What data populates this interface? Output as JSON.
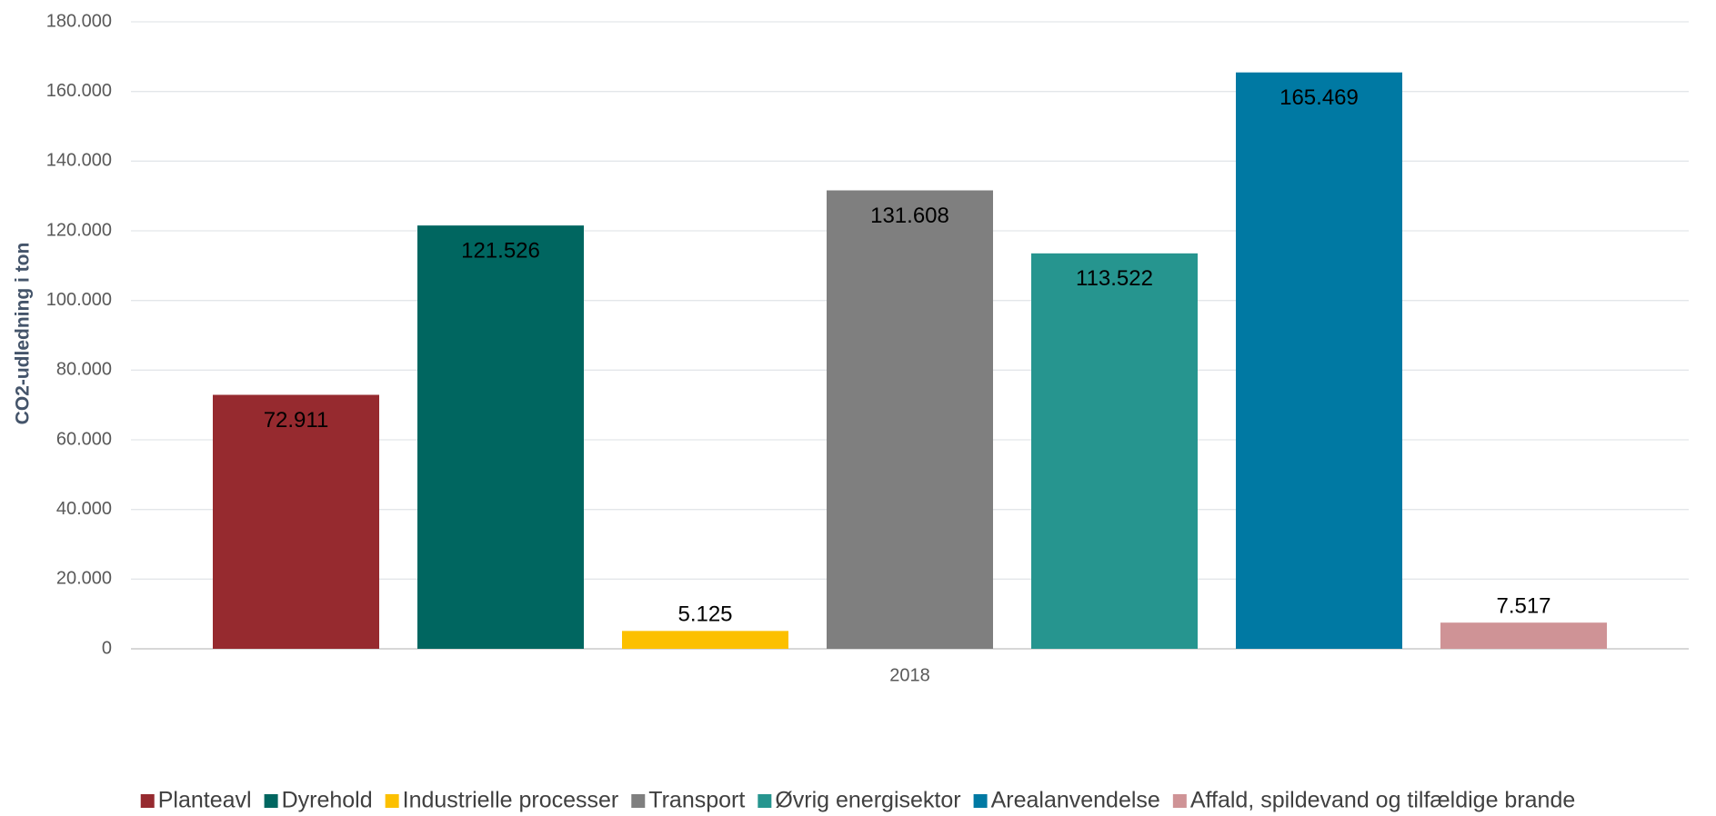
{
  "chart_data": {
    "type": "bar",
    "y_label": "CO2-udledning i ton",
    "categories": [
      "2018"
    ],
    "series": [
      {
        "name": "Planteavl",
        "color": "#962a2f",
        "values": [
          72911
        ],
        "value_labels": [
          "72.911"
        ]
      },
      {
        "name": "Dyrehold",
        "color": "#006660",
        "values": [
          121526
        ],
        "value_labels": [
          "121.526"
        ]
      },
      {
        "name": "Industrielle processer",
        "color": "#fcc000",
        "values": [
          5125
        ],
        "value_labels": [
          "5.125"
        ]
      },
      {
        "name": "Transport",
        "color": "#7f7f7f",
        "values": [
          131608
        ],
        "value_labels": [
          "131.608"
        ]
      },
      {
        "name": "Øvrig energisektor",
        "color": "#26958f",
        "values": [
          113522
        ],
        "value_labels": [
          "113.522"
        ]
      },
      {
        "name": "Arealanvendelse",
        "color": "#0079a3",
        "values": [
          165469
        ],
        "value_labels": [
          "165.469"
        ]
      },
      {
        "name": "Affald, spildevand og tilfældige brande",
        "color": "#cf9396",
        "values": [
          7517
        ],
        "value_labels": [
          "7.517"
        ]
      }
    ],
    "ylim": [
      0,
      180000
    ],
    "yticks": [
      0,
      {
        "value": 20000,
        "label": "20.000"
      },
      {
        "value": 40000,
        "label": "40.000"
      },
      {
        "value": 60000,
        "label": "60.000"
      },
      {
        "value": 80000,
        "label": "80.000"
      },
      {
        "value": 100000,
        "label": "100.000"
      },
      {
        "value": 120000,
        "label": "120.000"
      },
      {
        "value": 140000,
        "label": "140.000"
      },
      {
        "value": 160000,
        "label": "160.000"
      },
      {
        "value": 180000,
        "label": "180.000"
      }
    ],
    "grid": true,
    "legend": "bottom"
  }
}
